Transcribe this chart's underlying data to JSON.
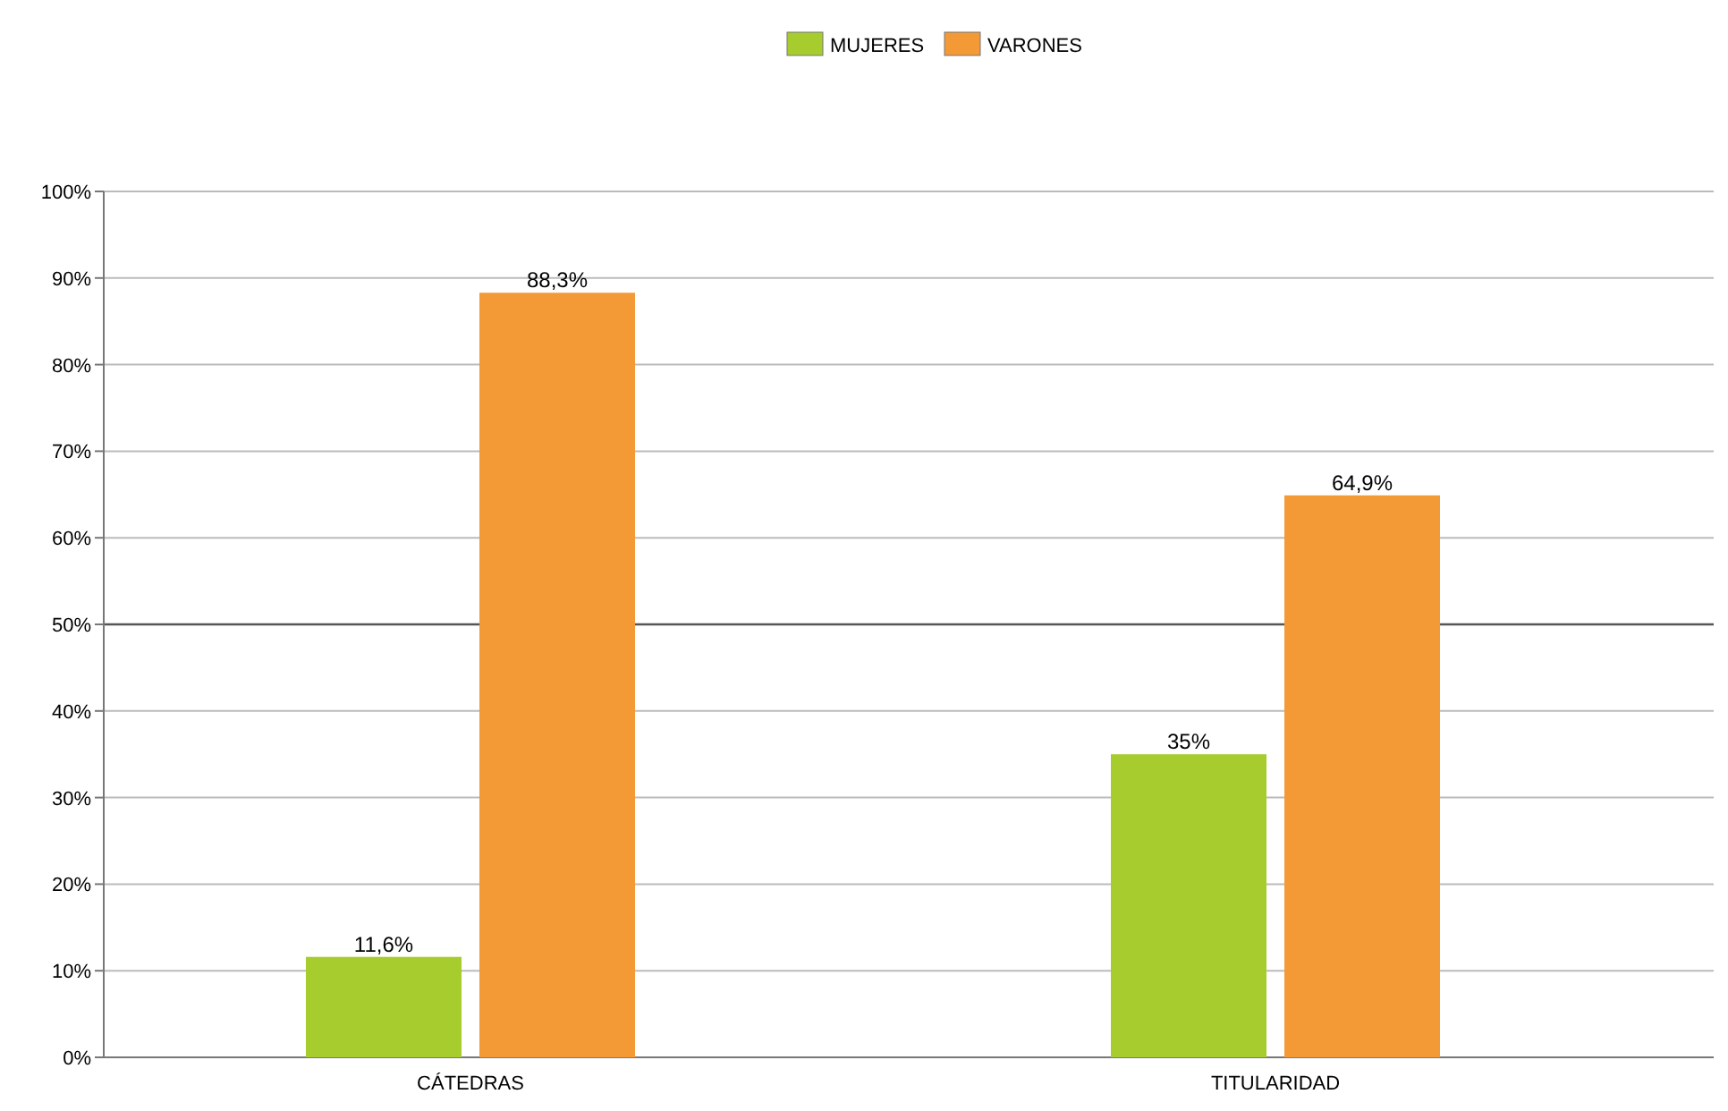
{
  "chart_data": {
    "type": "bar",
    "categories": [
      "CÁTEDRAS",
      "TITULARIDAD"
    ],
    "series": [
      {
        "name": "MUJERES",
        "color": "#a6cc2e",
        "values": [
          11.6,
          35
        ],
        "value_labels": [
          "11,6%",
          "35%"
        ]
      },
      {
        "name": "VARONES",
        "color": "#f39a36",
        "values": [
          88.3,
          64.9
        ],
        "value_labels": [
          "88,3%",
          "64,9%"
        ]
      }
    ],
    "ylim": [
      0,
      100
    ],
    "yticks": [
      {
        "value": 0,
        "label": "0%"
      },
      {
        "value": 10,
        "label": "10%"
      },
      {
        "value": 20,
        "label": "20%"
      },
      {
        "value": 30,
        "label": "30%"
      },
      {
        "value": 40,
        "label": "40%"
      },
      {
        "value": 50,
        "label": "50%"
      },
      {
        "value": 60,
        "label": "60%"
      },
      {
        "value": 70,
        "label": "70%"
      },
      {
        "value": 80,
        "label": "80%"
      },
      {
        "value": 90,
        "label": "90%"
      },
      {
        "value": 100,
        "label": "100%"
      }
    ],
    "ref_lines": [
      {
        "axis": "y",
        "value": 50,
        "color": "#555555"
      }
    ],
    "grid": "y",
    "legend": "top"
  }
}
